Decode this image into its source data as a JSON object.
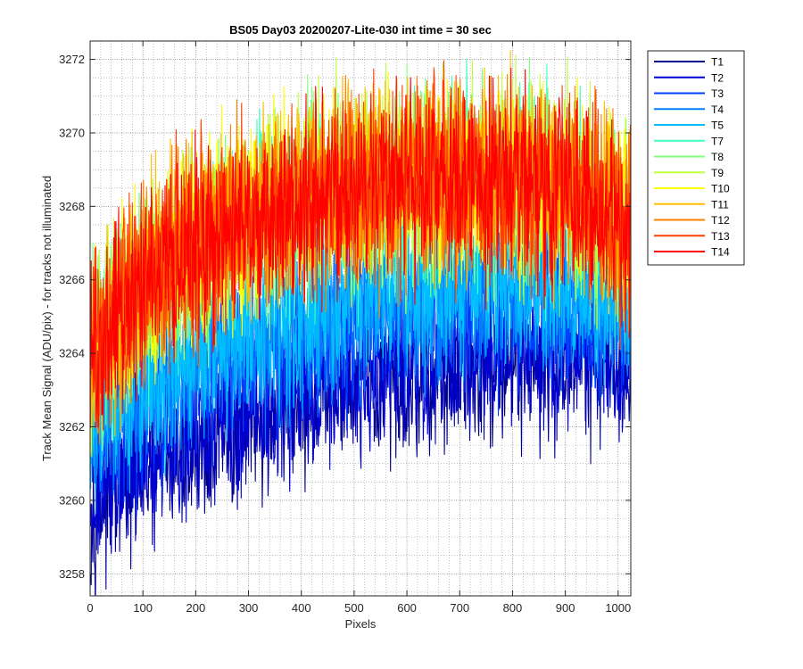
{
  "chart_data": {
    "type": "line",
    "title": "BS05 Day03 20200207-Lite-030 int time = 30 sec",
    "xlabel": "Pixels",
    "ylabel": "Track Mean Signal (ADU/pix) - for tracks not illuminated",
    "xlim": [
      0,
      1024
    ],
    "ylim": [
      3257.4,
      3272.5
    ],
    "x_ticks": [
      0,
      100,
      200,
      300,
      400,
      500,
      600,
      700,
      800,
      900,
      1000
    ],
    "y_ticks": [
      3258,
      3260,
      3262,
      3264,
      3266,
      3268,
      3270,
      3272
    ],
    "grid": "major and minor, dotted",
    "legend_position": "outside-top-right",
    "series": [
      {
        "name": "T1",
        "color": "#00008f",
        "trend": {
          "x": [
            0,
            100,
            200,
            300,
            400,
            500,
            600,
            700,
            800,
            900,
            1024
          ],
          "y": [
            3259.8,
            3260.8,
            3261.4,
            3262.0,
            3262.6,
            3263.0,
            3263.3,
            3263.6,
            3263.8,
            3263.9,
            3263.4
          ]
        },
        "noise_amplitude": 1.0
      },
      {
        "name": "T2",
        "color": "#0000d0",
        "trend": {
          "x": [
            0,
            100,
            200,
            300,
            400,
            500,
            600,
            700,
            800,
            900,
            1024
          ],
          "y": [
            3260.0,
            3261.0,
            3261.7,
            3262.3,
            3262.8,
            3263.2,
            3263.5,
            3263.8,
            3264.0,
            3264.1,
            3263.6
          ]
        },
        "noise_amplitude": 1.0
      },
      {
        "name": "T3",
        "color": "#0040ff",
        "trend": {
          "x": [
            0,
            100,
            200,
            300,
            400,
            500,
            600,
            700,
            800,
            900,
            1024
          ],
          "y": [
            3261.2,
            3262.6,
            3263.4,
            3264.0,
            3264.5,
            3264.9,
            3265.1,
            3265.3,
            3265.4,
            3265.3,
            3264.8
          ]
        },
        "noise_amplitude": 1.1
      },
      {
        "name": "T4",
        "color": "#0080ff",
        "trend": {
          "x": [
            0,
            100,
            200,
            300,
            400,
            500,
            600,
            700,
            800,
            900,
            1024
          ],
          "y": [
            3261.5,
            3262.9,
            3263.7,
            3264.3,
            3264.8,
            3265.2,
            3265.4,
            3265.6,
            3265.7,
            3265.6,
            3265.1
          ]
        },
        "noise_amplitude": 1.1
      },
      {
        "name": "T5",
        "color": "#00bfff",
        "trend": {
          "x": [
            0,
            100,
            200,
            300,
            400,
            500,
            600,
            700,
            800,
            900,
            1024
          ],
          "y": [
            3261.8,
            3263.2,
            3264.0,
            3264.6,
            3265.1,
            3265.5,
            3265.7,
            3265.9,
            3266.0,
            3265.9,
            3265.4
          ]
        },
        "noise_amplitude": 1.1
      },
      {
        "name": "T7",
        "color": "#40ffbf",
        "trend": {
          "x": [
            0,
            100,
            200,
            300,
            400,
            500,
            600,
            700,
            800,
            900,
            1024
          ],
          "y": [
            3263.6,
            3265.6,
            3266.7,
            3267.4,
            3267.9,
            3268.2,
            3268.4,
            3268.5,
            3268.4,
            3268.2,
            3267.2
          ]
        },
        "noise_amplitude": 1.3
      },
      {
        "name": "T8",
        "color": "#80ff80",
        "trend": {
          "x": [
            0,
            100,
            200,
            300,
            400,
            500,
            600,
            700,
            800,
            900,
            1024
          ],
          "y": [
            3263.8,
            3265.8,
            3266.9,
            3267.6,
            3268.1,
            3268.4,
            3268.6,
            3268.7,
            3268.6,
            3268.4,
            3267.4
          ]
        },
        "noise_amplitude": 1.3
      },
      {
        "name": "T9",
        "color": "#bfff40",
        "trend": {
          "x": [
            0,
            100,
            200,
            300,
            400,
            500,
            600,
            700,
            800,
            900,
            1024
          ],
          "y": [
            3263.9,
            3265.9,
            3267.0,
            3267.7,
            3268.2,
            3268.5,
            3268.7,
            3268.8,
            3268.7,
            3268.5,
            3267.5
          ]
        },
        "noise_amplitude": 1.3
      },
      {
        "name": "T10",
        "color": "#ffff00",
        "trend": {
          "x": [
            0,
            100,
            200,
            300,
            400,
            500,
            600,
            700,
            800,
            900,
            1024
          ],
          "y": [
            3264.0,
            3266.0,
            3267.1,
            3267.8,
            3268.3,
            3268.6,
            3268.8,
            3268.9,
            3268.8,
            3268.6,
            3267.6
          ]
        },
        "noise_amplitude": 1.3
      },
      {
        "name": "T11",
        "color": "#ffbf00",
        "trend": {
          "x": [
            0,
            100,
            200,
            300,
            400,
            500,
            600,
            700,
            800,
            900,
            1024
          ],
          "y": [
            3264.0,
            3266.0,
            3267.1,
            3267.8,
            3268.3,
            3268.6,
            3268.8,
            3268.9,
            3268.8,
            3268.6,
            3267.6
          ]
        },
        "noise_amplitude": 1.3
      },
      {
        "name": "T12",
        "color": "#ff8000",
        "trend": {
          "x": [
            0,
            100,
            200,
            300,
            400,
            500,
            600,
            700,
            800,
            900,
            1024
          ],
          "y": [
            3264.0,
            3266.0,
            3267.0,
            3267.7,
            3268.2,
            3268.5,
            3268.7,
            3268.8,
            3268.7,
            3268.5,
            3267.5
          ]
        },
        "noise_amplitude": 1.3
      },
      {
        "name": "T13",
        "color": "#ff4000",
        "trend": {
          "x": [
            0,
            100,
            200,
            300,
            400,
            500,
            600,
            700,
            800,
            900,
            1024
          ],
          "y": [
            3264.0,
            3266.0,
            3267.0,
            3267.7,
            3268.2,
            3268.5,
            3268.7,
            3268.8,
            3268.7,
            3268.5,
            3267.5
          ]
        },
        "noise_amplitude": 1.3
      },
      {
        "name": "T14",
        "color": "#ff0000",
        "trend": {
          "x": [
            0,
            100,
            200,
            300,
            400,
            500,
            600,
            700,
            800,
            900,
            1024
          ],
          "y": [
            3264.0,
            3265.9,
            3266.9,
            3267.6,
            3268.1,
            3268.4,
            3268.6,
            3268.7,
            3268.6,
            3268.4,
            3267.4
          ]
        },
        "noise_amplitude": 1.3
      }
    ]
  }
}
